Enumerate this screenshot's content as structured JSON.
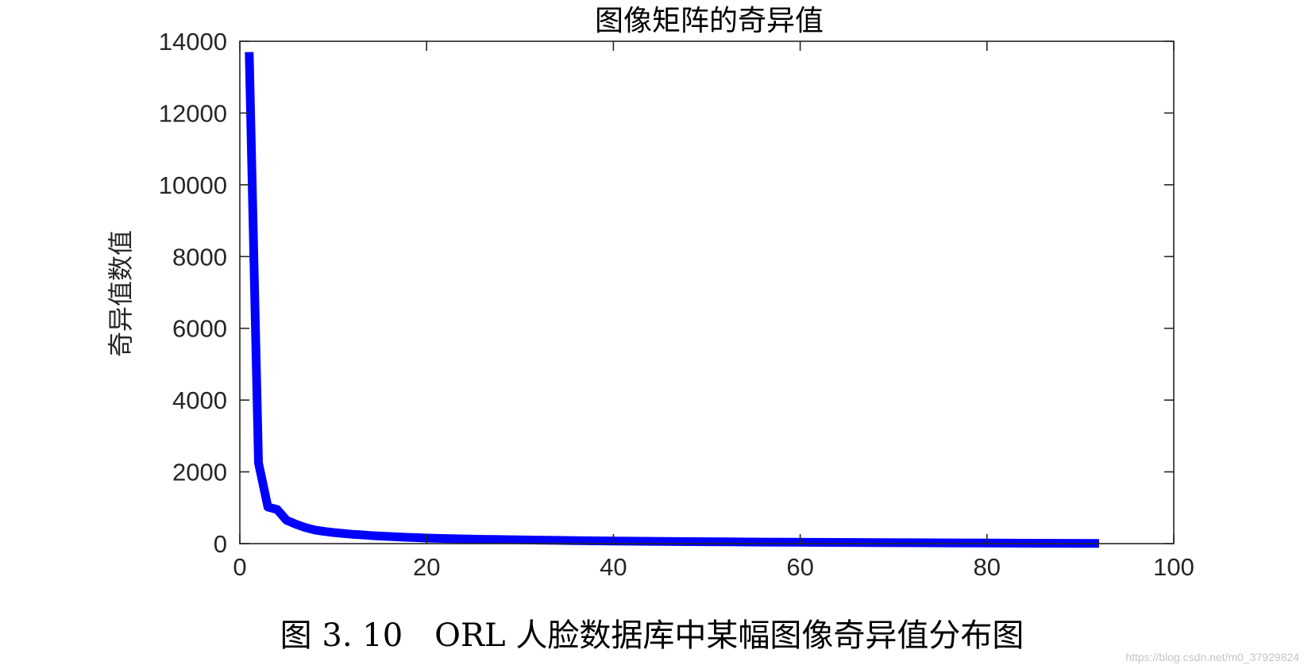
{
  "chart_data": {
    "type": "line",
    "title": "图像矩阵的奇异值",
    "xlabel": "",
    "ylabel": "奇异值数值",
    "xlim": [
      0,
      100
    ],
    "ylim": [
      0,
      14000
    ],
    "xticks": [
      "0",
      "20",
      "40",
      "60",
      "80",
      "100"
    ],
    "yticks": [
      "0",
      "2000",
      "4000",
      "6000",
      "8000",
      "10000",
      "12000",
      "14000"
    ],
    "grid": false,
    "line_color": "#0000ff",
    "series": [
      {
        "name": "",
        "x": [
          1,
          2,
          3,
          4,
          5,
          6,
          7,
          8,
          9,
          10,
          11,
          12,
          13,
          14,
          15,
          16,
          17,
          18,
          19,
          20,
          22,
          24,
          26,
          28,
          30,
          32,
          34,
          36,
          38,
          40,
          44,
          48,
          52,
          56,
          60,
          64,
          68,
          72,
          76,
          80,
          84,
          88,
          92
        ],
        "values": [
          13700,
          2250,
          1020,
          950,
          650,
          540,
          450,
          380,
          340,
          310,
          285,
          260,
          245,
          225,
          210,
          198,
          185,
          175,
          165,
          155,
          142,
          130,
          120,
          112,
          104,
          97,
          90,
          84,
          78,
          73,
          64,
          56,
          49,
          43,
          38,
          33,
          28,
          24,
          20,
          16,
          12,
          9,
          5
        ]
      }
    ]
  },
  "caption": "图 3. 10　ORL 人脸数据库中某幅图像奇异值分布图",
  "watermark": "https://blog.csdn.net/m0_37929824"
}
